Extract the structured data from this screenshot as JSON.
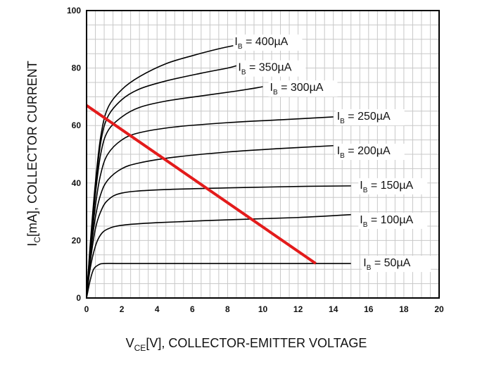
{
  "chart_data": {
    "type": "line",
    "xlabel": {
      "symbol": "V",
      "sub": "CE",
      "text": "[V], COLLECTOR-EMITTER VOLTAGE"
    },
    "ylabel": {
      "symbol": "I",
      "sub": "C",
      "text": "[mA], COLLECTOR CURRENT"
    },
    "xlim": [
      0,
      20
    ],
    "ylim": [
      0,
      100
    ],
    "x_ticks": [
      "0",
      "2",
      "4",
      "6",
      "8",
      "10",
      "12",
      "14",
      "16",
      "18",
      "20"
    ],
    "y_ticks": [
      "0",
      "20",
      "40",
      "60",
      "80",
      "100"
    ],
    "grid": true,
    "series": [
      {
        "name": "I_B = 50µA",
        "label": {
          "symbol": "I",
          "sub": "B",
          "text": " = 50µA"
        },
        "color": "#000000",
        "points": [
          [
            0,
            0
          ],
          [
            0.2,
            6
          ],
          [
            0.4,
            10
          ],
          [
            0.7,
            11.6
          ],
          [
            1,
            12
          ],
          [
            2,
            12
          ],
          [
            5,
            12
          ],
          [
            9,
            12
          ],
          [
            13,
            12
          ],
          [
            15,
            12
          ]
        ]
      },
      {
        "name": "I_B = 100µA",
        "label": {
          "symbol": "I",
          "sub": "B",
          "text": " = 100µA"
        },
        "color": "#000000",
        "points": [
          [
            0,
            0
          ],
          [
            0.2,
            10
          ],
          [
            0.5,
            18
          ],
          [
            0.8,
            22
          ],
          [
            1.2,
            24
          ],
          [
            2,
            25.3
          ],
          [
            4,
            26.2
          ],
          [
            8,
            27.2
          ],
          [
            12,
            28
          ],
          [
            15,
            29
          ]
        ]
      },
      {
        "name": "I_B = 150µA",
        "label": {
          "symbol": "I",
          "sub": "B",
          "text": " = 150µA"
        },
        "color": "#000000",
        "points": [
          [
            0,
            0
          ],
          [
            0.2,
            12
          ],
          [
            0.5,
            24
          ],
          [
            0.8,
            30
          ],
          [
            1.2,
            34
          ],
          [
            2,
            36.5
          ],
          [
            4,
            37.6
          ],
          [
            8,
            38.3
          ],
          [
            12,
            38.8
          ],
          [
            15,
            39
          ]
        ]
      },
      {
        "name": "I_B = 200µA",
        "label": {
          "symbol": "I",
          "sub": "B",
          "text": " = 200µA"
        },
        "color": "#000000",
        "points": [
          [
            0,
            0
          ],
          [
            0.2,
            14
          ],
          [
            0.5,
            28
          ],
          [
            0.8,
            36
          ],
          [
            1.2,
            41
          ],
          [
            2,
            45
          ],
          [
            3,
            47
          ],
          [
            5,
            49
          ],
          [
            8,
            50.8
          ],
          [
            11,
            52
          ],
          [
            14,
            53
          ]
        ]
      },
      {
        "name": "I_B = 250µA",
        "label": {
          "symbol": "I",
          "sub": "B",
          "text": " = 250µA"
        },
        "color": "#000000",
        "points": [
          [
            0,
            0
          ],
          [
            0.2,
            15
          ],
          [
            0.5,
            32
          ],
          [
            0.8,
            43
          ],
          [
            1.2,
            50
          ],
          [
            2,
            55
          ],
          [
            3,
            57.5
          ],
          [
            5,
            59.5
          ],
          [
            8,
            61
          ],
          [
            11,
            62
          ],
          [
            14,
            63
          ]
        ]
      },
      {
        "name": "I_B = 300µA",
        "label": {
          "symbol": "I",
          "sub": "B",
          "text": " = 300µA"
        },
        "color": "#000000",
        "points": [
          [
            0,
            0
          ],
          [
            0.2,
            16
          ],
          [
            0.5,
            36
          ],
          [
            0.8,
            50
          ],
          [
            1.2,
            58
          ],
          [
            2,
            63
          ],
          [
            3,
            66.3
          ],
          [
            4.5,
            68.5
          ],
          [
            6.5,
            70.3
          ],
          [
            8.5,
            72
          ],
          [
            10,
            73.5
          ]
        ]
      },
      {
        "name": "I_B = 350µA",
        "label": {
          "symbol": "I",
          "sub": "B",
          "text": " = 350µA"
        },
        "color": "#000000",
        "points": [
          [
            0,
            0
          ],
          [
            0.2,
            17
          ],
          [
            0.5,
            38
          ],
          [
            0.8,
            54
          ],
          [
            1.2,
            63
          ],
          [
            2,
            69
          ],
          [
            3,
            72.7
          ],
          [
            4.5,
            75.5
          ],
          [
            6.5,
            78.2
          ],
          [
            8,
            80
          ],
          [
            8.5,
            80.8
          ]
        ]
      },
      {
        "name": "I_B = 400µA",
        "label": {
          "symbol": "I",
          "sub": "B",
          "text": " = 400µA"
        },
        "color": "#000000",
        "points": [
          [
            0,
            0
          ],
          [
            0.2,
            18
          ],
          [
            0.5,
            40
          ],
          [
            0.8,
            56
          ],
          [
            1.2,
            66
          ],
          [
            2,
            72.5
          ],
          [
            3,
            77
          ],
          [
            4.5,
            81.5
          ],
          [
            6,
            84.3
          ],
          [
            7.5,
            86.7
          ],
          [
            8.5,
            88
          ]
        ]
      },
      {
        "name": "Load line",
        "color": "#e31b1b",
        "points": [
          [
            0,
            67
          ],
          [
            13,
            12
          ]
        ]
      }
    ],
    "label_anchors": [
      {
        "series": 0,
        "x": 15.7,
        "y": 11
      },
      {
        "series": 1,
        "x": 15.5,
        "y": 26
      },
      {
        "series": 2,
        "x": 15.5,
        "y": 38
      },
      {
        "series": 3,
        "x": 14.2,
        "y": 50
      },
      {
        "series": 4,
        "x": 14.2,
        "y": 62
      },
      {
        "series": 5,
        "x": 10.4,
        "y": 72
      },
      {
        "series": 6,
        "x": 8.6,
        "y": 79
      },
      {
        "series": 7,
        "x": 8.4,
        "y": 88
      }
    ]
  }
}
